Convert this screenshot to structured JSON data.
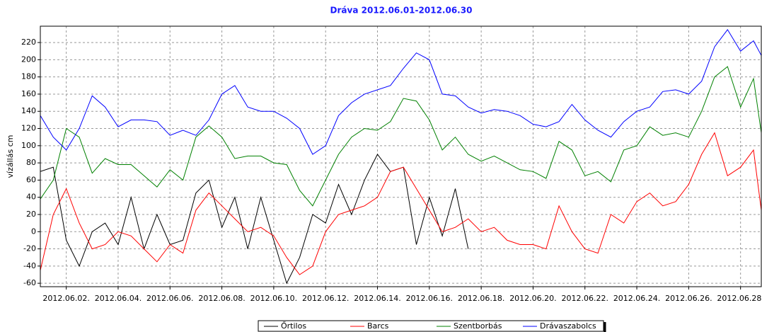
{
  "chart_data": {
    "type": "line",
    "title": "Dráva 2012.06.01-2012.06.30",
    "y_label": "vízállás cm",
    "x": [
      1,
      1.5,
      2,
      2.5,
      3,
      3.5,
      4,
      4.5,
      5,
      5.5,
      6,
      6.5,
      7,
      7.5,
      8,
      8.5,
      9,
      9.5,
      10,
      10.5,
      11,
      11.5,
      12,
      12.5,
      13,
      13.5,
      14,
      14.5,
      15,
      15.5,
      16,
      16.5,
      17,
      17.5,
      18,
      18.5,
      19,
      19.5,
      20,
      20.5,
      21,
      21.5,
      22,
      22.5,
      23,
      23.5,
      24,
      24.5,
      25,
      25.5,
      26,
      26.5,
      27,
      27.5,
      28,
      28.5,
      28.8
    ],
    "series": [
      {
        "name": "Őrtilos",
        "color": "#000000",
        "values": [
          70,
          75,
          -10,
          -40,
          0,
          10,
          -15,
          40,
          -20,
          20,
          -15,
          -10,
          45,
          60,
          5,
          40,
          -20,
          40,
          -10,
          -60,
          -30,
          20,
          10,
          55,
          20,
          60,
          90,
          70,
          75,
          -15,
          40,
          -5,
          50,
          -20,
          null,
          null,
          null,
          null,
          null,
          null,
          null,
          null,
          null,
          null,
          null,
          null,
          null,
          null,
          null,
          null,
          null,
          null,
          null,
          null,
          null,
          null,
          null
        ]
      },
      {
        "name": "Barcs",
        "color": "#ff0000",
        "values": [
          -45,
          20,
          50,
          10,
          -20,
          -15,
          0,
          -5,
          -20,
          -35,
          -15,
          -25,
          25,
          45,
          30,
          15,
          0,
          5,
          -5,
          -30,
          -50,
          -40,
          0,
          20,
          25,
          30,
          40,
          70,
          75,
          50,
          25,
          0,
          5,
          15,
          0,
          5,
          -10,
          -15,
          -15,
          -20,
          30,
          0,
          -20,
          -25,
          20,
          10,
          35,
          45,
          30,
          35,
          55,
          90,
          115,
          65,
          75,
          95,
          25
        ]
      },
      {
        "name": "Szentborbás",
        "color": "#008000",
        "values": [
          38,
          60,
          120,
          110,
          68,
          85,
          78,
          78,
          65,
          52,
          72,
          60,
          110,
          123,
          110,
          85,
          88,
          88,
          80,
          78,
          48,
          30,
          60,
          90,
          110,
          120,
          118,
          128,
          155,
          152,
          130,
          95,
          110,
          90,
          82,
          88,
          80,
          72,
          70,
          62,
          105,
          95,
          65,
          70,
          58,
          95,
          100,
          122,
          112,
          115,
          110,
          140,
          180,
          192,
          145,
          178,
          115
        ]
      },
      {
        "name": "Drávaszabolcs",
        "color": "#0000ff",
        "values": [
          135,
          110,
          95,
          120,
          158,
          145,
          122,
          130,
          130,
          128,
          112,
          118,
          112,
          130,
          160,
          170,
          145,
          140,
          140,
          132,
          120,
          90,
          100,
          135,
          150,
          160,
          165,
          170,
          190,
          208,
          200,
          160,
          158,
          145,
          138,
          142,
          140,
          135,
          125,
          122,
          128,
          148,
          130,
          118,
          110,
          128,
          140,
          145,
          163,
          165,
          160,
          175,
          215,
          235,
          210,
          222,
          205
        ]
      }
    ],
    "xlim": [
      1,
      28.8
    ],
    "xticks": [
      {
        "value": 2,
        "label": "2012.06.02."
      },
      {
        "value": 4,
        "label": "2012.06.04."
      },
      {
        "value": 6,
        "label": "2012.06.06."
      },
      {
        "value": 8,
        "label": "2012.06.08."
      },
      {
        "value": 10,
        "label": "2012.06.10."
      },
      {
        "value": 12,
        "label": "2012.06.12."
      },
      {
        "value": 14,
        "label": "2012.06.14."
      },
      {
        "value": 16,
        "label": "2012.06.16."
      },
      {
        "value": 18,
        "label": "2012.06.18."
      },
      {
        "value": 20,
        "label": "2012.06.20."
      },
      {
        "value": 22,
        "label": "2012.06.22."
      },
      {
        "value": 24,
        "label": "2012.06.24."
      },
      {
        "value": 26,
        "label": "2012.06.26."
      },
      {
        "value": 28,
        "label": "2012.06.28."
      }
    ],
    "ylim": [
      -64,
      239
    ],
    "yticks": [
      -60,
      -40,
      -20,
      0,
      20,
      40,
      60,
      80,
      100,
      120,
      140,
      160,
      180,
      200,
      220
    ],
    "grid": true,
    "legend": "bottom"
  }
}
